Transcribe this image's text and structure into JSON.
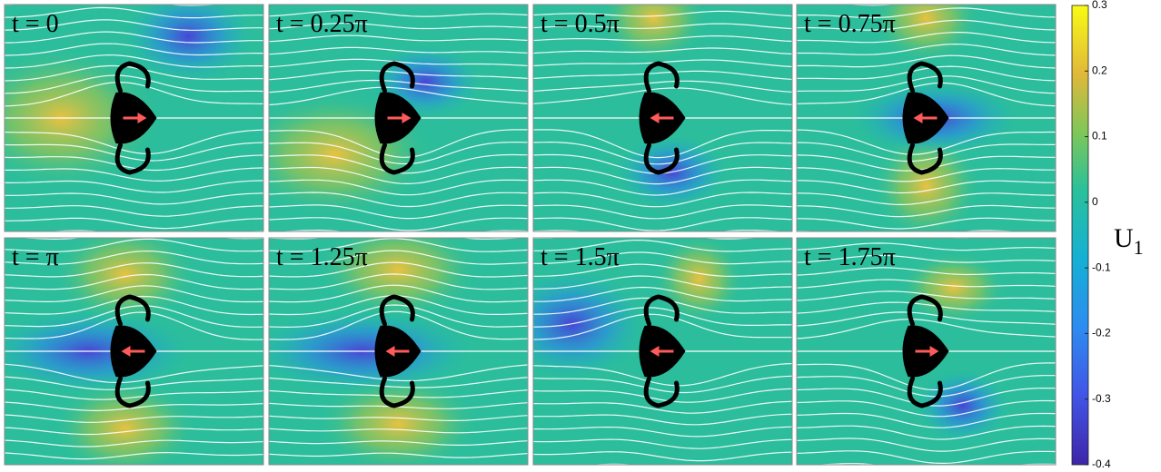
{
  "panels": [
    {
      "label": "t = 0",
      "arrow": "right"
    },
    {
      "label": "t = 0.25π",
      "arrow": "right"
    },
    {
      "label": "t = 0.5π",
      "arrow": "left"
    },
    {
      "label": "t = 0.75π",
      "arrow": "left"
    },
    {
      "label": "t = π",
      "arrow": "left"
    },
    {
      "label": "t = 1.25π",
      "arrow": "left"
    },
    {
      "label": "t = 1.5π",
      "arrow": "left"
    },
    {
      "label": "t = 1.75π",
      "arrow": "right"
    }
  ],
  "colorbar": {
    "label": "U",
    "label_sub": "1",
    "lim": [
      -0.4,
      0.3
    ],
    "ticks": [
      -0.4,
      -0.3,
      -0.2,
      -0.1,
      0,
      0.1,
      0.2,
      0.3
    ]
  }
}
